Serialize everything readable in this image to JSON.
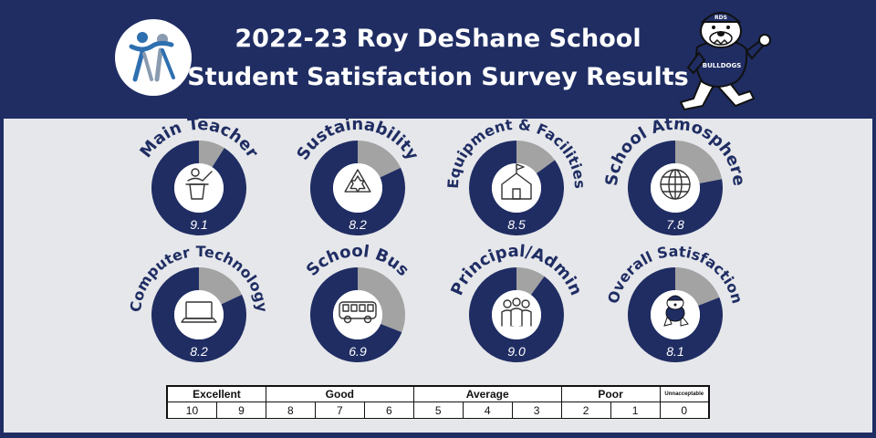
{
  "header": {
    "title_line1": "2022-23 Roy DeShane School",
    "title_line2": "Student Satisfaction Survey Results",
    "mascot_cap_text": "RDS",
    "mascot_shirt_text": "BULLDOGS"
  },
  "colors": {
    "navy": "#1f2d63",
    "gray": "#a3a3a3",
    "panel": "#e6e7ea",
    "white": "#ffffff",
    "logo_blue": "#2e6fb0",
    "logo_gray": "#8a9bb0"
  },
  "chart_data": {
    "type": "pie",
    "max": 10,
    "items": [
      {
        "label": "Main Teacher",
        "value": 9.1,
        "value_text": "9.1",
        "icon": "teacher-icon"
      },
      {
        "label": "Sustainability",
        "value": 8.2,
        "value_text": "8.2",
        "icon": "recycle-icon"
      },
      {
        "label": "Equipment & Facilities",
        "value": 8.5,
        "value_text": "8.5",
        "icon": "school-house-icon"
      },
      {
        "label": "School Atmosphere",
        "value": 7.8,
        "value_text": "7.8",
        "icon": "globe-icon"
      },
      {
        "label": "Computer Technology",
        "value": 8.2,
        "value_text": "8.2",
        "icon": "laptop-icon"
      },
      {
        "label": "School Bus",
        "value": 6.9,
        "value_text": "6.9",
        "icon": "school-bus-icon"
      },
      {
        "label": "Principal/Admin",
        "value": 9.0,
        "value_text": "9.0",
        "icon": "people-icon"
      },
      {
        "label": "Overall Satisfaction",
        "value": 8.1,
        "value_text": "8.1",
        "icon": "bulldog-icon"
      }
    ]
  },
  "legend": {
    "categories": [
      "Excellent",
      "Good",
      "Average",
      "Poor",
      "Unnacceptable"
    ],
    "numbers": [
      "10",
      "9",
      "8",
      "7",
      "6",
      "5",
      "4",
      "3",
      "2",
      "1",
      "0"
    ]
  }
}
